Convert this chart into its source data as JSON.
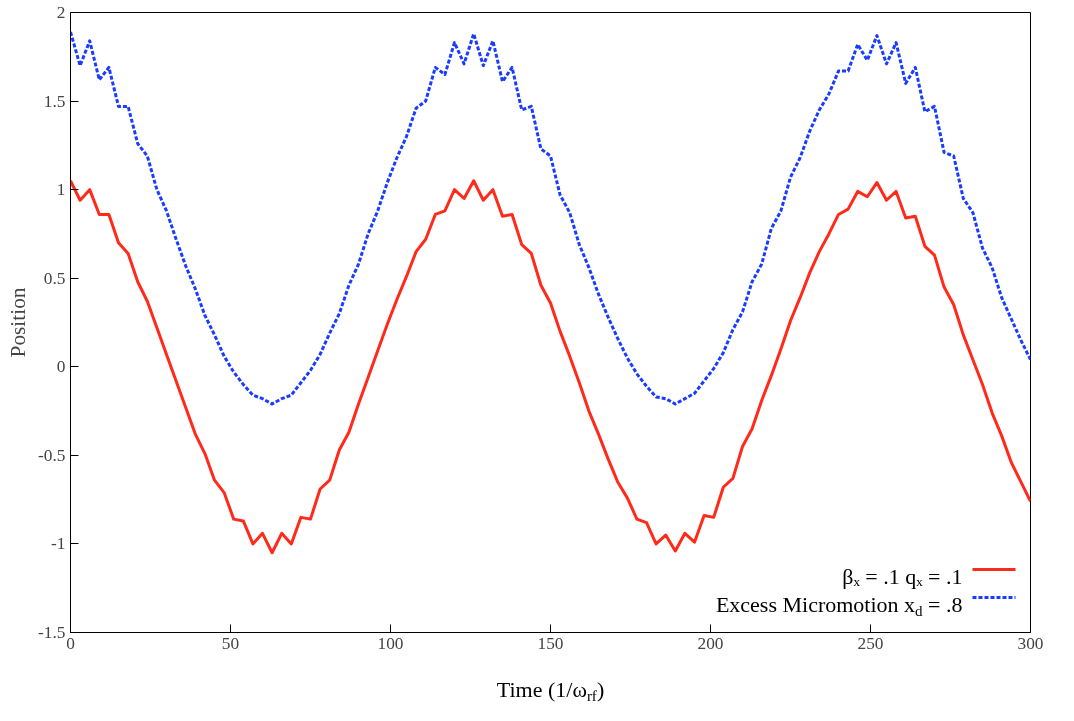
{
  "chart_data": {
    "type": "line",
    "xlabel": "Time (1/ω$_{rf}$)",
    "ylabel": "Position",
    "x": [
      0,
      3,
      6,
      9,
      12,
      15,
      18,
      21,
      24,
      27,
      30,
      33,
      36,
      39,
      42,
      45,
      48,
      51,
      54,
      57,
      60,
      63,
      66,
      69,
      72,
      75,
      78,
      81,
      84,
      87,
      90,
      93,
      96,
      99,
      102,
      105,
      108,
      111,
      114,
      117,
      120,
      123,
      126,
      129,
      132,
      135,
      138,
      141,
      144,
      147,
      150,
      153,
      156,
      159,
      162,
      165,
      168,
      171,
      174,
      177,
      180,
      183,
      186,
      189,
      192,
      195,
      198,
      201,
      204,
      207,
      210,
      213,
      216,
      219,
      222,
      225,
      228,
      231,
      234,
      237,
      240,
      243,
      246,
      249,
      252,
      255,
      258,
      261,
      264,
      267,
      270,
      273,
      276,
      279,
      282,
      285,
      288,
      291,
      294,
      297,
      300
    ],
    "series": [
      {
        "name": "βₓ = .1 qₓ = .1",
        "color": "#ff2a1a",
        "line_style": "solid",
        "values": [
          1.05,
          0.94,
          1.0,
          0.86,
          0.86,
          0.7,
          0.64,
          0.48,
          0.37,
          0.22,
          0.07,
          -0.08,
          -0.23,
          -0.38,
          -0.49,
          -0.64,
          -0.71,
          -0.86,
          -0.87,
          -1.0,
          -0.94,
          -1.05,
          -0.94,
          -1.0,
          -0.85,
          -0.86,
          -0.69,
          -0.64,
          -0.47,
          -0.37,
          -0.21,
          -0.06,
          0.09,
          0.24,
          0.38,
          0.51,
          0.65,
          0.72,
          0.86,
          0.88,
          1.0,
          0.95,
          1.05,
          0.94,
          1.0,
          0.85,
          0.86,
          0.69,
          0.64,
          0.46,
          0.36,
          0.2,
          0.06,
          -0.09,
          -0.25,
          -0.38,
          -0.52,
          -0.65,
          -0.74,
          -0.86,
          -0.88,
          -1.0,
          -0.95,
          -1.04,
          -0.94,
          -0.99,
          -0.84,
          -0.85,
          -0.68,
          -0.63,
          -0.45,
          -0.35,
          -0.19,
          -0.05,
          0.1,
          0.26,
          0.39,
          0.53,
          0.65,
          0.75,
          0.86,
          0.89,
          0.99,
          0.96,
          1.04,
          0.94,
          0.99,
          0.84,
          0.85,
          0.68,
          0.63,
          0.45,
          0.35,
          0.18,
          0.04,
          -0.1,
          -0.26,
          -0.39,
          -0.54,
          -0.65,
          -0.76
        ]
      },
      {
        "name": "Excess Micromotion x$_{d}$ = .8",
        "color": "#1a3cff",
        "line_style": "dashed",
        "values": [
          1.89,
          1.7,
          1.84,
          1.62,
          1.69,
          1.47,
          1.47,
          1.26,
          1.19,
          1.0,
          0.88,
          0.72,
          0.57,
          0.44,
          0.29,
          0.18,
          0.06,
          -0.03,
          -0.1,
          -0.16,
          -0.18,
          -0.21,
          -0.18,
          -0.16,
          -0.09,
          -0.02,
          0.07,
          0.19,
          0.3,
          0.46,
          0.58,
          0.75,
          0.88,
          1.04,
          1.18,
          1.3,
          1.46,
          1.5,
          1.69,
          1.65,
          1.83,
          1.71,
          1.88,
          1.7,
          1.84,
          1.61,
          1.69,
          1.45,
          1.47,
          1.23,
          1.19,
          0.97,
          0.87,
          0.69,
          0.56,
          0.41,
          0.28,
          0.16,
          0.05,
          -0.04,
          -0.11,
          -0.17,
          -0.18,
          -0.21,
          -0.18,
          -0.15,
          -0.08,
          -0.01,
          0.08,
          0.21,
          0.31,
          0.48,
          0.58,
          0.78,
          0.88,
          1.07,
          1.18,
          1.33,
          1.45,
          1.54,
          1.67,
          1.67,
          1.82,
          1.73,
          1.87,
          1.71,
          1.83,
          1.6,
          1.69,
          1.44,
          1.47,
          1.21,
          1.19,
          0.95,
          0.87,
          0.67,
          0.56,
          0.39,
          0.27,
          0.15,
          0.04
        ]
      }
    ],
    "xlim": [
      0,
      300
    ],
    "ylim": [
      -1.5,
      2
    ],
    "xticks": [
      0,
      50,
      100,
      150,
      200,
      250,
      300
    ],
    "yticks": [
      -1.5,
      -1,
      -0.5,
      0,
      0.5,
      1,
      1.5,
      2
    ],
    "grid": false,
    "legend": "bottom right"
  }
}
